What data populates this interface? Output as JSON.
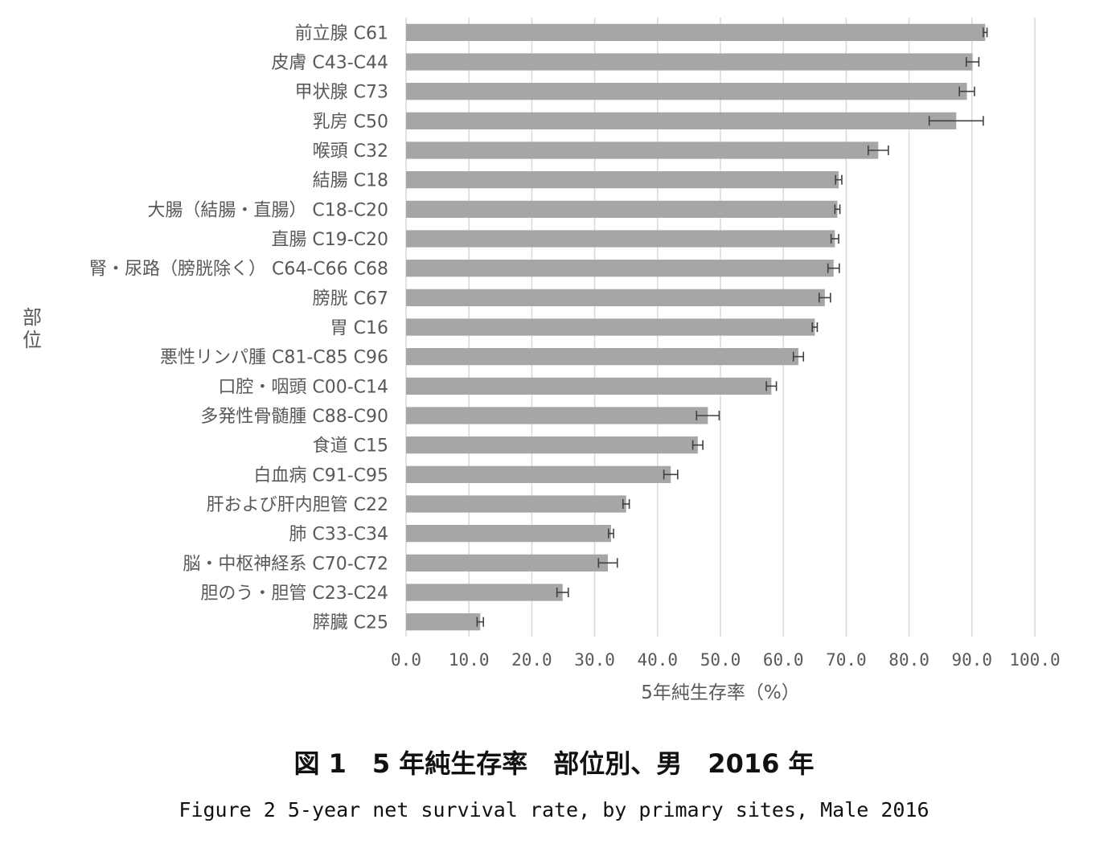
{
  "chart_data": {
    "type": "bar",
    "orientation": "horizontal",
    "xlabel": "5年純生存率（%）",
    "ylabel": "部位",
    "xlim": [
      0,
      100
    ],
    "xticks": [
      "0.0",
      "10.0",
      "20.0",
      "30.0",
      "40.0",
      "50.0",
      "60.0",
      "70.0",
      "80.0",
      "90.0",
      "100.0"
    ],
    "grid": "vertical",
    "bar_color": "#a6a6a6",
    "categories": [
      "前立腺 C61",
      "皮膚 C43-C44",
      "甲状腺 C73",
      "乳房 C50",
      "喉頭 C32",
      "結腸 C18",
      "大腸（結腸・直腸） C18-C20",
      "直腸 C19-C20",
      "腎・尿路（膀胱除く） C64-C66 C68",
      "膀胱 C67",
      "胃 C16",
      "悪性リンパ腫 C81-C85 C96",
      "口腔・咽頭 C00-C14",
      "多発性骨髄腫 C88-C90",
      "食道 C15",
      "白血病 C91-C95",
      "肝および肝内胆管 C22",
      "肺 C33-C34",
      "脳・中枢神経系 C70-C72",
      "胆のう・胆管 C23-C24",
      "膵臓 C25"
    ],
    "values": [
      92.1,
      90.1,
      89.2,
      87.5,
      75.1,
      68.8,
      68.6,
      68.2,
      68.0,
      66.6,
      65.0,
      62.4,
      58.1,
      48.0,
      46.4,
      42.1,
      35.0,
      32.6,
      32.1,
      24.9,
      11.8
    ],
    "error_low": [
      91.8,
      89.1,
      88.0,
      83.2,
      73.5,
      68.3,
      68.2,
      67.6,
      67.1,
      65.7,
      64.6,
      61.6,
      57.3,
      46.2,
      45.6,
      41.0,
      34.5,
      32.2,
      30.6,
      24.0,
      11.3
    ],
    "error_high": [
      92.4,
      91.1,
      90.4,
      91.8,
      76.7,
      69.3,
      69.0,
      68.8,
      68.9,
      67.5,
      65.4,
      63.2,
      58.9,
      49.8,
      47.2,
      43.2,
      35.5,
      33.0,
      33.6,
      25.8,
      12.3
    ]
  },
  "caption": {
    "jp": "図 1　5 年純生存率　部位別、男　2016 年",
    "en": "Figure 2 5-year net survival rate, by primary sites, Male 2016"
  }
}
